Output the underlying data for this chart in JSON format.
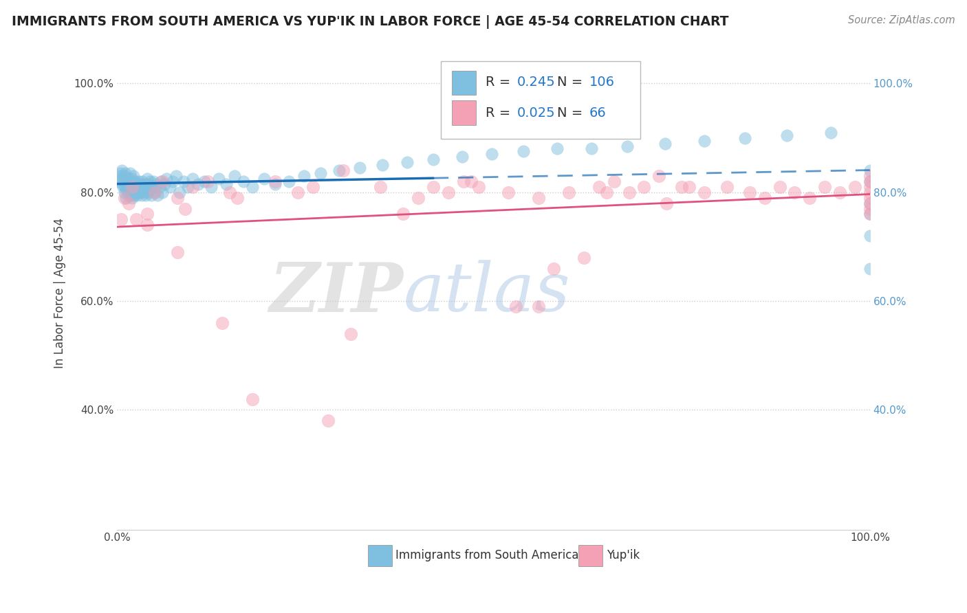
{
  "title": "IMMIGRANTS FROM SOUTH AMERICA VS YUP'IK IN LABOR FORCE | AGE 45-54 CORRELATION CHART",
  "source": "Source: ZipAtlas.com",
  "ylabel": "In Labor Force | Age 45-54",
  "xlim": [
    0.0,
    1.0
  ],
  "ylim": [
    0.18,
    1.05
  ],
  "yticks": [
    0.4,
    0.6,
    0.8,
    1.0
  ],
  "xticks": [
    0.0,
    0.2,
    0.4,
    0.6,
    0.8,
    1.0
  ],
  "legend_R1": "0.245",
  "legend_N1": "106",
  "legend_R2": "0.025",
  "legend_N2": "66",
  "color_blue": "#7fbfdf",
  "color_pink": "#f4a0b5",
  "color_blue_line": "#1a6db5",
  "color_pink_line": "#e05080",
  "watermark_zip": "ZIP",
  "watermark_atlas": "atlas",
  "background_color": "#ffffff",
  "grid_color": "#cccccc",
  "blue_x": [
    0.002,
    0.003,
    0.004,
    0.005,
    0.006,
    0.007,
    0.008,
    0.009,
    0.01,
    0.01,
    0.011,
    0.011,
    0.012,
    0.012,
    0.013,
    0.013,
    0.014,
    0.015,
    0.015,
    0.016,
    0.016,
    0.017,
    0.017,
    0.018,
    0.018,
    0.019,
    0.02,
    0.02,
    0.021,
    0.022,
    0.022,
    0.023,
    0.024,
    0.025,
    0.026,
    0.027,
    0.028,
    0.029,
    0.03,
    0.031,
    0.032,
    0.033,
    0.034,
    0.035,
    0.036,
    0.037,
    0.038,
    0.039,
    0.04,
    0.041,
    0.042,
    0.043,
    0.044,
    0.045,
    0.046,
    0.048,
    0.05,
    0.052,
    0.054,
    0.056,
    0.058,
    0.06,
    0.063,
    0.066,
    0.07,
    0.074,
    0.078,
    0.083,
    0.088,
    0.094,
    0.1,
    0.108,
    0.116,
    0.125,
    0.135,
    0.145,
    0.156,
    0.168,
    0.18,
    0.195,
    0.21,
    0.228,
    0.248,
    0.27,
    0.295,
    0.322,
    0.352,
    0.385,
    0.42,
    0.458,
    0.498,
    0.54,
    0.584,
    0.63,
    0.678,
    0.728,
    0.78,
    0.834,
    0.89,
    0.948,
    1.0,
    1.0,
    1.0,
    1.0,
    1.0,
    1.0
  ],
  "blue_y": [
    0.82,
    0.83,
    0.835,
    0.825,
    0.84,
    0.815,
    0.81,
    0.82,
    0.83,
    0.8,
    0.835,
    0.81,
    0.825,
    0.79,
    0.82,
    0.805,
    0.815,
    0.825,
    0.795,
    0.81,
    0.8,
    0.82,
    0.835,
    0.795,
    0.815,
    0.8,
    0.825,
    0.79,
    0.8,
    0.81,
    0.83,
    0.795,
    0.82,
    0.81,
    0.795,
    0.815,
    0.8,
    0.82,
    0.81,
    0.8,
    0.815,
    0.795,
    0.82,
    0.81,
    0.8,
    0.815,
    0.795,
    0.81,
    0.825,
    0.8,
    0.815,
    0.805,
    0.82,
    0.795,
    0.81,
    0.82,
    0.8,
    0.815,
    0.795,
    0.81,
    0.82,
    0.8,
    0.815,
    0.825,
    0.81,
    0.82,
    0.83,
    0.8,
    0.82,
    0.81,
    0.825,
    0.815,
    0.82,
    0.81,
    0.825,
    0.815,
    0.83,
    0.82,
    0.81,
    0.825,
    0.815,
    0.82,
    0.83,
    0.835,
    0.84,
    0.845,
    0.85,
    0.855,
    0.86,
    0.865,
    0.87,
    0.875,
    0.88,
    0.88,
    0.885,
    0.89,
    0.895,
    0.9,
    0.905,
    0.91,
    0.66,
    0.72,
    0.78,
    0.84,
    0.76,
    0.82
  ],
  "pink_x": [
    0.005,
    0.01,
    0.015,
    0.02,
    0.025,
    0.04,
    0.05,
    0.06,
    0.08,
    0.09,
    0.1,
    0.15,
    0.16,
    0.21,
    0.24,
    0.26,
    0.3,
    0.35,
    0.4,
    0.44,
    0.48,
    0.52,
    0.56,
    0.6,
    0.64,
    0.68,
    0.72,
    0.75,
    0.78,
    0.81,
    0.84,
    0.86,
    0.88,
    0.9,
    0.92,
    0.94,
    0.96,
    0.98,
    1.0,
    1.0,
    1.0,
    1.0,
    1.0,
    1.0,
    1.0,
    1.0,
    0.38,
    0.42,
    0.47,
    0.56,
    0.62,
    0.66,
    0.7,
    0.73,
    0.76,
    0.04,
    0.08,
    0.12,
    0.14,
    0.18,
    0.28,
    0.31,
    0.46,
    0.53,
    0.58,
    0.65
  ],
  "pink_y": [
    0.75,
    0.79,
    0.78,
    0.81,
    0.75,
    0.76,
    0.8,
    0.82,
    0.79,
    0.77,
    0.81,
    0.8,
    0.79,
    0.82,
    0.8,
    0.81,
    0.84,
    0.81,
    0.79,
    0.8,
    0.81,
    0.8,
    0.79,
    0.8,
    0.81,
    0.8,
    0.83,
    0.81,
    0.8,
    0.81,
    0.8,
    0.79,
    0.81,
    0.8,
    0.79,
    0.81,
    0.8,
    0.81,
    0.82,
    0.83,
    0.81,
    0.8,
    0.79,
    0.78,
    0.77,
    0.76,
    0.76,
    0.81,
    0.82,
    0.59,
    0.68,
    0.82,
    0.81,
    0.78,
    0.81,
    0.74,
    0.69,
    0.82,
    0.56,
    0.42,
    0.38,
    0.54,
    0.82,
    0.59,
    0.66,
    0.8
  ]
}
